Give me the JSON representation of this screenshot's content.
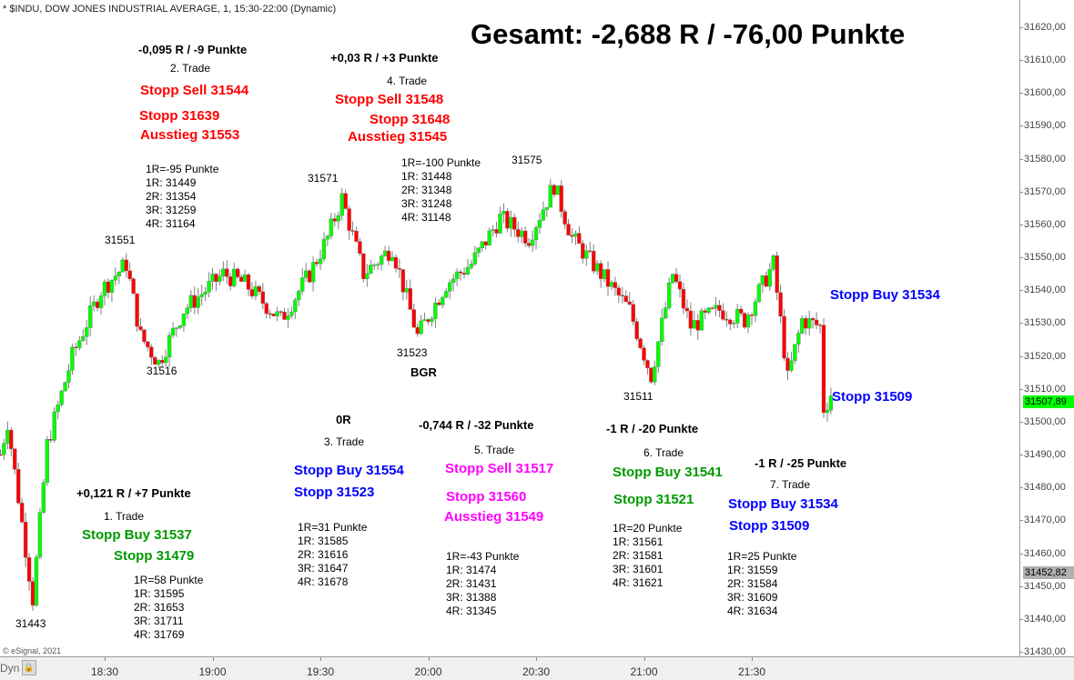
{
  "header": {
    "title": "* $INDU, DOW JONES INDUSTRIAL AVERAGE, 1, 15:30-22:00 (Dynamic)"
  },
  "total": "Gesamt: -2,688 R / -76,00 Punkte",
  "copyright": "© eSignal, 2021",
  "timebar": {
    "dyn_label": "Dyn",
    "lock_icon": "lock-icon"
  },
  "colors": {
    "up": "#00ff00",
    "down": "#ff0000",
    "wick": "#808080",
    "last_price_tag": "#00ff00",
    "low_tag": "#b0b0b0",
    "sell": "#ff0000",
    "buy_blue": "#0000ff",
    "buy_green": "#009a00",
    "sell_magenta": "#ff00ff"
  },
  "trades": [
    {
      "result": "+0,121 R / +7 Punkte",
      "label": "1. Trade",
      "lines": [
        "Stopp Buy 31537",
        "Stopp 31479"
      ],
      "r": [
        "1R=58 Punkte",
        "1R: 31595",
        "2R: 31653",
        "3R: 31711",
        "4R: 31769"
      ]
    },
    {
      "result": "-0,095 R / -9 Punkte",
      "label": "2. Trade",
      "lines": [
        "Stopp Sell 31544",
        "Stopp 31639",
        "Ausstieg 31553"
      ],
      "r": [
        "1R=-95 Punkte",
        "1R: 31449",
        "2R: 31354",
        "3R: 31259",
        "4R: 31164"
      ]
    },
    {
      "result": "0R",
      "label": "3. Trade",
      "lines": [
        "Stopp Buy 31554",
        "Stopp 31523"
      ],
      "r": [
        "1R=31 Punkte",
        "1R: 31585",
        "2R: 31616",
        "3R: 31647",
        "4R: 31678"
      ]
    },
    {
      "result": "+0,03 R / +3 Punkte",
      "label": "4. Trade",
      "lines": [
        "Stopp Sell 31548",
        "Stopp 31648",
        "Ausstieg 31545"
      ],
      "r": [
        "1R=-100 Punkte",
        "1R: 31448",
        "2R: 31348",
        "3R: 31248",
        "4R: 31148"
      ]
    },
    {
      "result": "-0,744 R / -32 Punkte",
      "label": "5. Trade",
      "lines": [
        "Stopp Sell 31517",
        "Stopp 31560",
        "Ausstieg 31549"
      ],
      "r": [
        "1R=-43 Punkte",
        "1R: 31474",
        "2R: 31431",
        "3R: 31388",
        "4R: 31345"
      ]
    },
    {
      "result": "-1 R / -20 Punkte",
      "label": "6. Trade",
      "lines": [
        "Stopp Buy 31541",
        "Stopp 31521"
      ],
      "r": [
        "1R=20 Punkte",
        "1R: 31561",
        "2R: 31581",
        "3R: 31601",
        "4R: 31621"
      ]
    },
    {
      "result": "-1 R / -25 Punkte",
      "label": "7. Trade",
      "lines": [
        "Stopp Buy 31534",
        "Stopp 31509"
      ],
      "r": [
        "1R=25 Punkte",
        "1R: 31559",
        "2R: 31584",
        "3R: 31609",
        "4R: 31634"
      ]
    }
  ],
  "current_orders": [
    "Stopp Buy 31534",
    "Stopp 31509"
  ],
  "bgr": "BGR",
  "chart_data": {
    "type": "candlestick",
    "interval_minutes": 1,
    "x_ticks": [
      "18:30",
      "19:00",
      "19:30",
      "20:00",
      "20:30",
      "21:00",
      "21:30"
    ],
    "y_ticks": [
      "31620,00",
      "31610,00",
      "31600,00",
      "31590,00",
      "31580,00",
      "31570,00",
      "31560,00",
      "31550,00",
      "31540,00",
      "31530,00",
      "31520,00",
      "31510,00",
      "31500,00",
      "31490,00",
      "31480,00",
      "31470,00",
      "31460,00",
      "31450,00",
      "31440,00",
      "31430,00"
    ],
    "ylim": [
      31430,
      31620
    ],
    "last_price": "31507,89",
    "low_marker": "31452,82",
    "price_labels": [
      "31443",
      "31551",
      "31516",
      "31571",
      "31523",
      "31575",
      "31511"
    ],
    "price_path": [
      {
        "t": "18:01",
        "p": 31490
      },
      {
        "t": "18:03",
        "p": 31500
      },
      {
        "t": "18:10",
        "p": 31446
      },
      {
        "t": "18:14",
        "p": 31493
      },
      {
        "t": "18:21",
        "p": 31520
      },
      {
        "t": "18:29",
        "p": 31540
      },
      {
        "t": "18:36",
        "p": 31548
      },
      {
        "t": "18:40",
        "p": 31526
      },
      {
        "t": "18:45",
        "p": 31518
      },
      {
        "t": "18:52",
        "p": 31534
      },
      {
        "t": "19:03",
        "p": 31545
      },
      {
        "t": "19:09",
        "p": 31542
      },
      {
        "t": "19:19",
        "p": 31531
      },
      {
        "t": "19:27",
        "p": 31545
      },
      {
        "t": "19:32",
        "p": 31556
      },
      {
        "t": "19:36",
        "p": 31568
      },
      {
        "t": "19:42",
        "p": 31545
      },
      {
        "t": "19:50",
        "p": 31553
      },
      {
        "t": "19:57",
        "p": 31526
      },
      {
        "t": "20:05",
        "p": 31542
      },
      {
        "t": "20:12",
        "p": 31548
      },
      {
        "t": "20:20",
        "p": 31562
      },
      {
        "t": "20:28",
        "p": 31556
      },
      {
        "t": "20:35",
        "p": 31572
      },
      {
        "t": "20:40",
        "p": 31556
      },
      {
        "t": "20:48",
        "p": 31545
      },
      {
        "t": "20:56",
        "p": 31534
      },
      {
        "t": "21:02",
        "p": 31514
      },
      {
        "t": "21:08",
        "p": 31545
      },
      {
        "t": "21:13",
        "p": 31529
      },
      {
        "t": "21:21",
        "p": 31534
      },
      {
        "t": "21:28",
        "p": 31531
      },
      {
        "t": "21:36",
        "p": 31548
      },
      {
        "t": "21:40",
        "p": 31513
      },
      {
        "t": "21:44",
        "p": 31531
      },
      {
        "t": "21:49",
        "p": 31529
      },
      {
        "t": "21:50",
        "p": 31504
      },
      {
        "t": "21:52",
        "p": 31507.89
      }
    ]
  }
}
